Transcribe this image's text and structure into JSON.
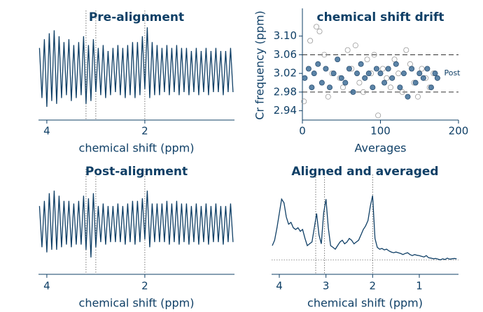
{
  "chart_data": [
    {
      "type": "line",
      "title": "Pre-alignment",
      "xlabel": "chemical shift (ppm)",
      "color": "#0f3f66",
      "xlim": [
        4.17,
        0.17
      ],
      "xticks": [
        4,
        2
      ],
      "ylim": [
        -1.6,
        1.6
      ],
      "vlines": [
        3.2,
        3.0,
        2.0
      ],
      "x": [
        4.15,
        4.1,
        4.05,
        4.0,
        3.95,
        3.9,
        3.85,
        3.8,
        3.75,
        3.7,
        3.65,
        3.6,
        3.55,
        3.5,
        3.45,
        3.4,
        3.35,
        3.3,
        3.25,
        3.2,
        3.15,
        3.1,
        3.05,
        3.0,
        2.95,
        2.9,
        2.85,
        2.8,
        2.75,
        2.7,
        2.65,
        2.6,
        2.55,
        2.5,
        2.45,
        2.4,
        2.35,
        2.3,
        2.25,
        2.2,
        2.15,
        2.1,
        2.05,
        2.0,
        1.95,
        1.9,
        1.85,
        1.8,
        1.75,
        1.7,
        1.65,
        1.6,
        1.55,
        1.5,
        1.45,
        1.4,
        1.35,
        1.3,
        1.25,
        1.2,
        1.15,
        1.1,
        1.05,
        1.0,
        0.95,
        0.9,
        0.85,
        0.8,
        0.75,
        0.7,
        0.65,
        0.6,
        0.55,
        0.5,
        0.45,
        0.4,
        0.35,
        0.3,
        0.25,
        0.2
      ],
      "values": [
        0.8,
        -0.9,
        1.1,
        -1.2,
        1.3,
        -1.0,
        1.4,
        -1.1,
        1.2,
        -0.9,
        1.0,
        -0.8,
        1.1,
        -1.0,
        0.9,
        -0.9,
        1.0,
        -0.8,
        1.2,
        -1.1,
        0.9,
        -1.0,
        1.1,
        -0.7,
        0.8,
        -0.8,
        0.9,
        -0.9,
        0.7,
        -0.8,
        0.8,
        -0.7,
        0.9,
        -0.8,
        0.8,
        -0.9,
        0.9,
        -0.8,
        1.0,
        -0.9,
        1.0,
        -0.8,
        1.2,
        -0.6,
        1.5,
        -0.9,
        1.0,
        -0.8,
        0.9,
        -0.8,
        0.8,
        -0.7,
        0.9,
        -0.8,
        0.8,
        -0.7,
        0.9,
        -0.8,
        0.8,
        -0.7,
        0.8,
        -0.8,
        0.7,
        -0.7,
        0.8,
        -0.8,
        0.7,
        -0.7,
        0.8,
        -0.8,
        0.7,
        -0.7,
        0.8,
        -0.7,
        0.7,
        -0.8,
        0.7,
        -0.7,
        0.8,
        -0.7
      ]
    },
    {
      "type": "scatter",
      "title": "chemical shift drift",
      "xlabel": "Averages",
      "ylabel": "Cr frequency (ppm)",
      "xlim": [
        0,
        200
      ],
      "xticks": [
        0,
        100,
        200
      ],
      "ylim": [
        2.92,
        3.125
      ],
      "yticks": [
        2.94,
        2.98,
        3.02,
        3.06,
        {
          "value": 3.1,
          "label": "3.10"
        }
      ],
      "hlines": [
        2.98,
        3.06
      ],
      "annotation": {
        "text": "Post",
        "x": 178,
        "y": 3.02
      },
      "series": [
        {
          "color": "#3f6f98",
          "filled": true,
          "x": [
            3,
            8,
            12,
            15,
            20,
            25,
            30,
            35,
            40,
            45,
            50,
            55,
            60,
            65,
            70,
            75,
            80,
            85,
            90,
            95,
            100,
            105,
            110,
            115,
            120,
            125,
            130,
            135,
            140,
            145,
            150,
            155,
            160,
            165,
            170,
            173
          ],
          "values": [
            3.01,
            3.03,
            2.99,
            3.02,
            3.04,
            3.0,
            3.03,
            2.99,
            3.02,
            3.05,
            3.01,
            3.0,
            3.03,
            2.98,
            3.02,
            3.04,
            3.01,
            3.02,
            2.99,
            3.03,
            3.02,
            3.0,
            3.03,
            3.01,
            3.04,
            2.99,
            3.02,
            2.97,
            3.03,
            3.0,
            3.02,
            3.01,
            3.03,
            2.99,
            3.02,
            3.01
          ]
        },
        {
          "color": "#9a9a9a",
          "filled": false,
          "x": [
            2,
            10,
            18,
            22,
            28,
            33,
            38,
            48,
            52,
            58,
            63,
            68,
            73,
            78,
            83,
            88,
            92,
            97,
            103,
            108,
            113,
            118,
            123,
            128,
            133,
            138,
            143,
            148,
            153,
            158,
            163,
            168
          ],
          "values": [
            2.96,
            3.09,
            3.12,
            3.11,
            3.06,
            2.97,
            3.02,
            3.01,
            2.99,
            3.07,
            3.03,
            3.08,
            3.0,
            2.98,
            3.05,
            3.02,
            3.06,
            2.93,
            3.03,
            3.01,
            2.99,
            3.05,
            3.02,
            2.98,
            3.07,
            3.04,
            3.0,
            2.97,
            3.03,
            3.01,
            2.99,
            3.02
          ]
        }
      ]
    },
    {
      "type": "line",
      "title": "Post-alignment",
      "xlabel": "chemical shift (ppm)",
      "color": "#0f3f66",
      "xlim": [
        4.17,
        0.17
      ],
      "xticks": [
        4,
        2
      ],
      "ylim": [
        -1.6,
        1.6
      ],
      "vlines": [
        3.2,
        3.0,
        2.0
      ],
      "x": [
        4.15,
        4.1,
        4.05,
        4.0,
        3.95,
        3.9,
        3.85,
        3.8,
        3.75,
        3.7,
        3.65,
        3.6,
        3.55,
        3.5,
        3.45,
        3.4,
        3.35,
        3.3,
        3.25,
        3.2,
        3.15,
        3.1,
        3.05,
        3.0,
        2.95,
        2.9,
        2.85,
        2.8,
        2.75,
        2.7,
        2.65,
        2.6,
        2.55,
        2.5,
        2.45,
        2.4,
        2.35,
        2.3,
        2.25,
        2.2,
        2.15,
        2.1,
        2.05,
        2.0,
        1.95,
        1.9,
        1.85,
        1.8,
        1.75,
        1.7,
        1.65,
        1.6,
        1.55,
        1.5,
        1.45,
        1.4,
        1.35,
        1.3,
        1.25,
        1.2,
        1.15,
        1.1,
        1.05,
        1.0,
        0.95,
        0.9,
        0.85,
        0.8,
        0.75,
        0.7,
        0.65,
        0.6,
        0.55,
        0.5,
        0.45,
        0.4,
        0.35,
        0.3,
        0.25,
        0.2
      ],
      "values": [
        0.7,
        -0.9,
        0.9,
        -1.1,
        1.2,
        -1.0,
        1.3,
        -1.0,
        1.1,
        -0.9,
        0.9,
        -0.8,
        0.9,
        -0.9,
        0.8,
        -0.8,
        0.9,
        -0.8,
        1.1,
        -1.0,
        1.0,
        -1.3,
        1.2,
        -0.9,
        0.7,
        -0.7,
        0.8,
        -0.8,
        0.7,
        -0.7,
        0.7,
        -0.7,
        0.8,
        -0.7,
        0.7,
        -0.8,
        0.8,
        -0.7,
        0.9,
        -0.8,
        0.9,
        -0.7,
        1.0,
        -0.6,
        1.3,
        -0.9,
        0.8,
        -0.7,
        0.8,
        -0.7,
        0.8,
        -0.7,
        0.9,
        -0.8,
        0.8,
        -0.7,
        0.9,
        -0.8,
        0.8,
        -0.7,
        0.8,
        -0.8,
        0.7,
        -0.7,
        0.8,
        -0.8,
        0.7,
        -0.7,
        0.8,
        -0.8,
        0.7,
        -0.7,
        0.8,
        -0.7,
        0.7,
        -0.8,
        0.7,
        -0.7,
        0.8,
        -0.7
      ]
    },
    {
      "type": "line",
      "title": "Aligned and averaged",
      "xlabel": "chemical shift (ppm)",
      "color": "#0f3f66",
      "xlim": [
        4.165,
        0.16
      ],
      "xticks": [
        4,
        3,
        2,
        1
      ],
      "ylim": [
        -0.15,
        2.0
      ],
      "vlines": [
        3.22,
        3.03,
        2.0
      ],
      "hlines": [
        0
      ],
      "x": [
        4.15,
        4.1,
        4.05,
        4.0,
        3.95,
        3.9,
        3.85,
        3.8,
        3.75,
        3.7,
        3.65,
        3.6,
        3.55,
        3.5,
        3.45,
        3.4,
        3.35,
        3.3,
        3.25,
        3.2,
        3.15,
        3.1,
        3.05,
        3.0,
        2.95,
        2.9,
        2.85,
        2.8,
        2.75,
        2.7,
        2.65,
        2.6,
        2.55,
        2.5,
        2.45,
        2.4,
        2.35,
        2.3,
        2.25,
        2.2,
        2.15,
        2.1,
        2.05,
        2.0,
        1.95,
        1.9,
        1.85,
        1.8,
        1.75,
        1.7,
        1.65,
        1.6,
        1.55,
        1.5,
        1.45,
        1.4,
        1.35,
        1.3,
        1.25,
        1.2,
        1.15,
        1.1,
        1.05,
        1.0,
        0.95,
        0.9,
        0.85,
        0.8,
        0.75,
        0.7,
        0.65,
        0.6,
        0.55,
        0.5,
        0.45,
        0.4,
        0.35,
        0.3,
        0.25,
        0.2
      ],
      "values": [
        0.4,
        0.55,
        0.9,
        1.3,
        1.7,
        1.6,
        1.2,
        1.0,
        1.05,
        0.9,
        0.85,
        0.9,
        0.8,
        0.85,
        0.6,
        0.4,
        0.45,
        0.5,
        0.9,
        1.3,
        0.7,
        0.45,
        1.3,
        1.7,
        0.9,
        0.4,
        0.35,
        0.3,
        0.4,
        0.5,
        0.55,
        0.45,
        0.5,
        0.6,
        0.55,
        0.45,
        0.5,
        0.55,
        0.7,
        0.85,
        0.95,
        1.1,
        1.5,
        1.8,
        0.6,
        0.35,
        0.3,
        0.32,
        0.28,
        0.3,
        0.25,
        0.22,
        0.2,
        0.22,
        0.2,
        0.18,
        0.15,
        0.18,
        0.2,
        0.15,
        0.12,
        0.15,
        0.13,
        0.12,
        0.1,
        0.08,
        0.12,
        0.06,
        0.05,
        0.03,
        0.04,
        0.02,
        0.0,
        0.03,
        0.01,
        0.05,
        0.02,
        0.03,
        0.04,
        0.03
      ]
    }
  ]
}
